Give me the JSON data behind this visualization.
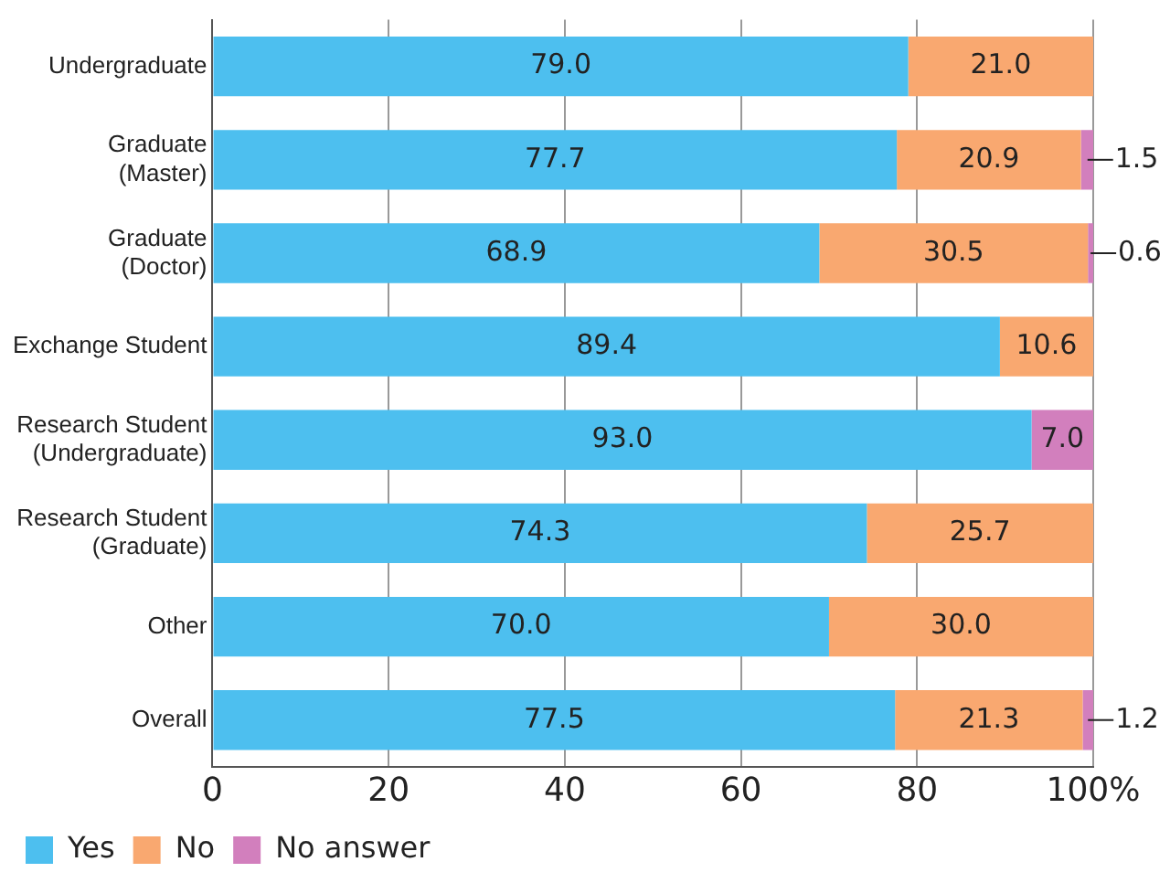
{
  "chart_data": {
    "type": "bar",
    "orientation": "horizontal",
    "stacked": true,
    "categories": [
      "Undergraduate",
      "Graduate\n(Master)",
      "Graduate\n(Doctor)",
      "Exchange Student",
      "Research Student\n(Undergraduate)",
      "Research Student\n(Graduate)",
      "Other",
      "Overall"
    ],
    "series": [
      {
        "name": "Yes",
        "color": "#4dbfef",
        "values": [
          79.0,
          77.7,
          68.9,
          89.4,
          93.0,
          74.3,
          70.0,
          77.5
        ],
        "value_labels": [
          "79.0",
          "77.7",
          "68.9",
          "89.4",
          "93.0",
          "74.3",
          "70.0",
          "77.5"
        ]
      },
      {
        "name": "No",
        "color": "#f9a870",
        "values": [
          21.0,
          20.9,
          30.5,
          10.6,
          null,
          25.7,
          30.0,
          21.3
        ],
        "value_labels": [
          "21.0",
          "20.9",
          "30.5",
          "10.6",
          null,
          "25.7",
          "30.0",
          "21.3"
        ]
      },
      {
        "name": "No answer",
        "color": "#d27fbd",
        "values": [
          null,
          1.5,
          0.6,
          null,
          7.0,
          null,
          null,
          1.2
        ],
        "value_labels": [
          null,
          "1.5",
          "0.6",
          null,
          "7.0",
          null,
          null,
          "1.2"
        ]
      }
    ],
    "xlim": [
      0,
      100
    ],
    "xticks": [
      0,
      20,
      40,
      60,
      80,
      {
        "value": 100,
        "label": "100%"
      }
    ],
    "grid": "x",
    "legend": "bottom left"
  }
}
